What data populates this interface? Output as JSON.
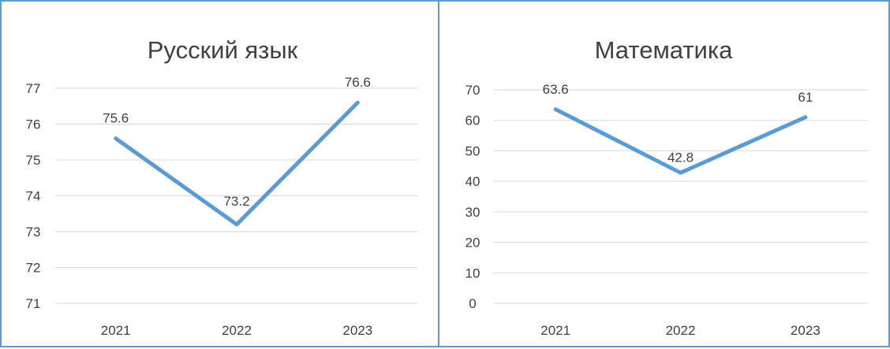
{
  "chart_data": [
    {
      "type": "line",
      "title": "Русский язык",
      "categories": [
        "2021",
        "2022",
        "2023"
      ],
      "series": [
        {
          "values": [
            75.6,
            73.2,
            76.6
          ]
        }
      ],
      "data_labels": [
        "75.6",
        "73.2",
        "76.6"
      ],
      "ylim": [
        71,
        77
      ],
      "yticks": [
        71,
        72,
        73,
        74,
        75,
        76,
        77
      ],
      "grid": true,
      "legend": "none",
      "color": "#5b9bd5"
    },
    {
      "type": "line",
      "title": "Математика",
      "categories": [
        "2021",
        "2022",
        "2023"
      ],
      "series": [
        {
          "values": [
            63.6,
            42.8,
            61
          ]
        }
      ],
      "data_labels": [
        "63.6",
        "42.8",
        "61"
      ],
      "ylim": [
        0,
        70
      ],
      "yticks": [
        0,
        10,
        20,
        30,
        40,
        50,
        60,
        70
      ],
      "grid": true,
      "legend": "none",
      "color": "#5b9bd5"
    }
  ]
}
